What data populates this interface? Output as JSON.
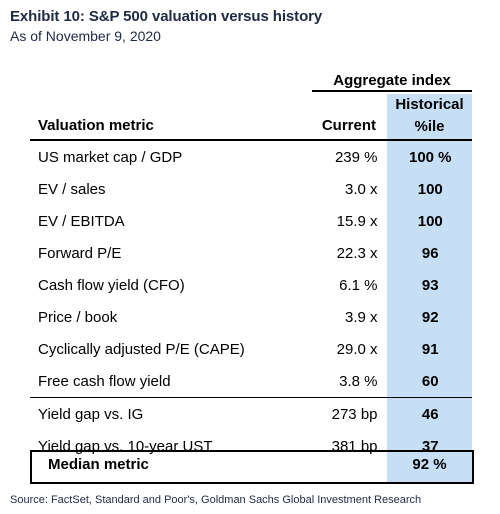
{
  "exhibit": {
    "title": "Exhibit 10: S&P 500 valuation versus history",
    "subtitle": "As of November 9, 2020"
  },
  "header": {
    "group_label": "Aggregate index",
    "historical_line1": "Historical",
    "historical_line2": "%ile",
    "metric_col": "Valuation metric",
    "current_col": "Current"
  },
  "rows": [
    {
      "metric": "US market cap / GDP",
      "current": "239 %",
      "percentile": "100 %"
    },
    {
      "metric": "EV / sales",
      "current": "3.0 x",
      "percentile": "100"
    },
    {
      "metric": "EV / EBITDA",
      "current": "15.9 x",
      "percentile": "100"
    },
    {
      "metric": "Forward P/E",
      "current": "22.3 x",
      "percentile": "96"
    },
    {
      "metric": "Cash flow yield (CFO)",
      "current": "6.1 %",
      "percentile": "93"
    },
    {
      "metric": "Price / book",
      "current": "3.9 x",
      "percentile": "92"
    },
    {
      "metric": "Cyclically adjusted P/E (CAPE)",
      "current": "29.0 x",
      "percentile": "91"
    },
    {
      "metric": "Free cash flow yield",
      "current": "3.8 %",
      "percentile": "60"
    },
    {
      "metric": "Yield gap vs. IG",
      "current": "273 bp",
      "percentile": "46"
    },
    {
      "metric": "Yield gap vs. 10-year UST",
      "current": "381 bp",
      "percentile": "37"
    }
  ],
  "median": {
    "label": "Median metric",
    "percentile": "92 %"
  },
  "source": "Source: FactSet, Standard and Poor's, Goldman Sachs Global Investment Research"
}
